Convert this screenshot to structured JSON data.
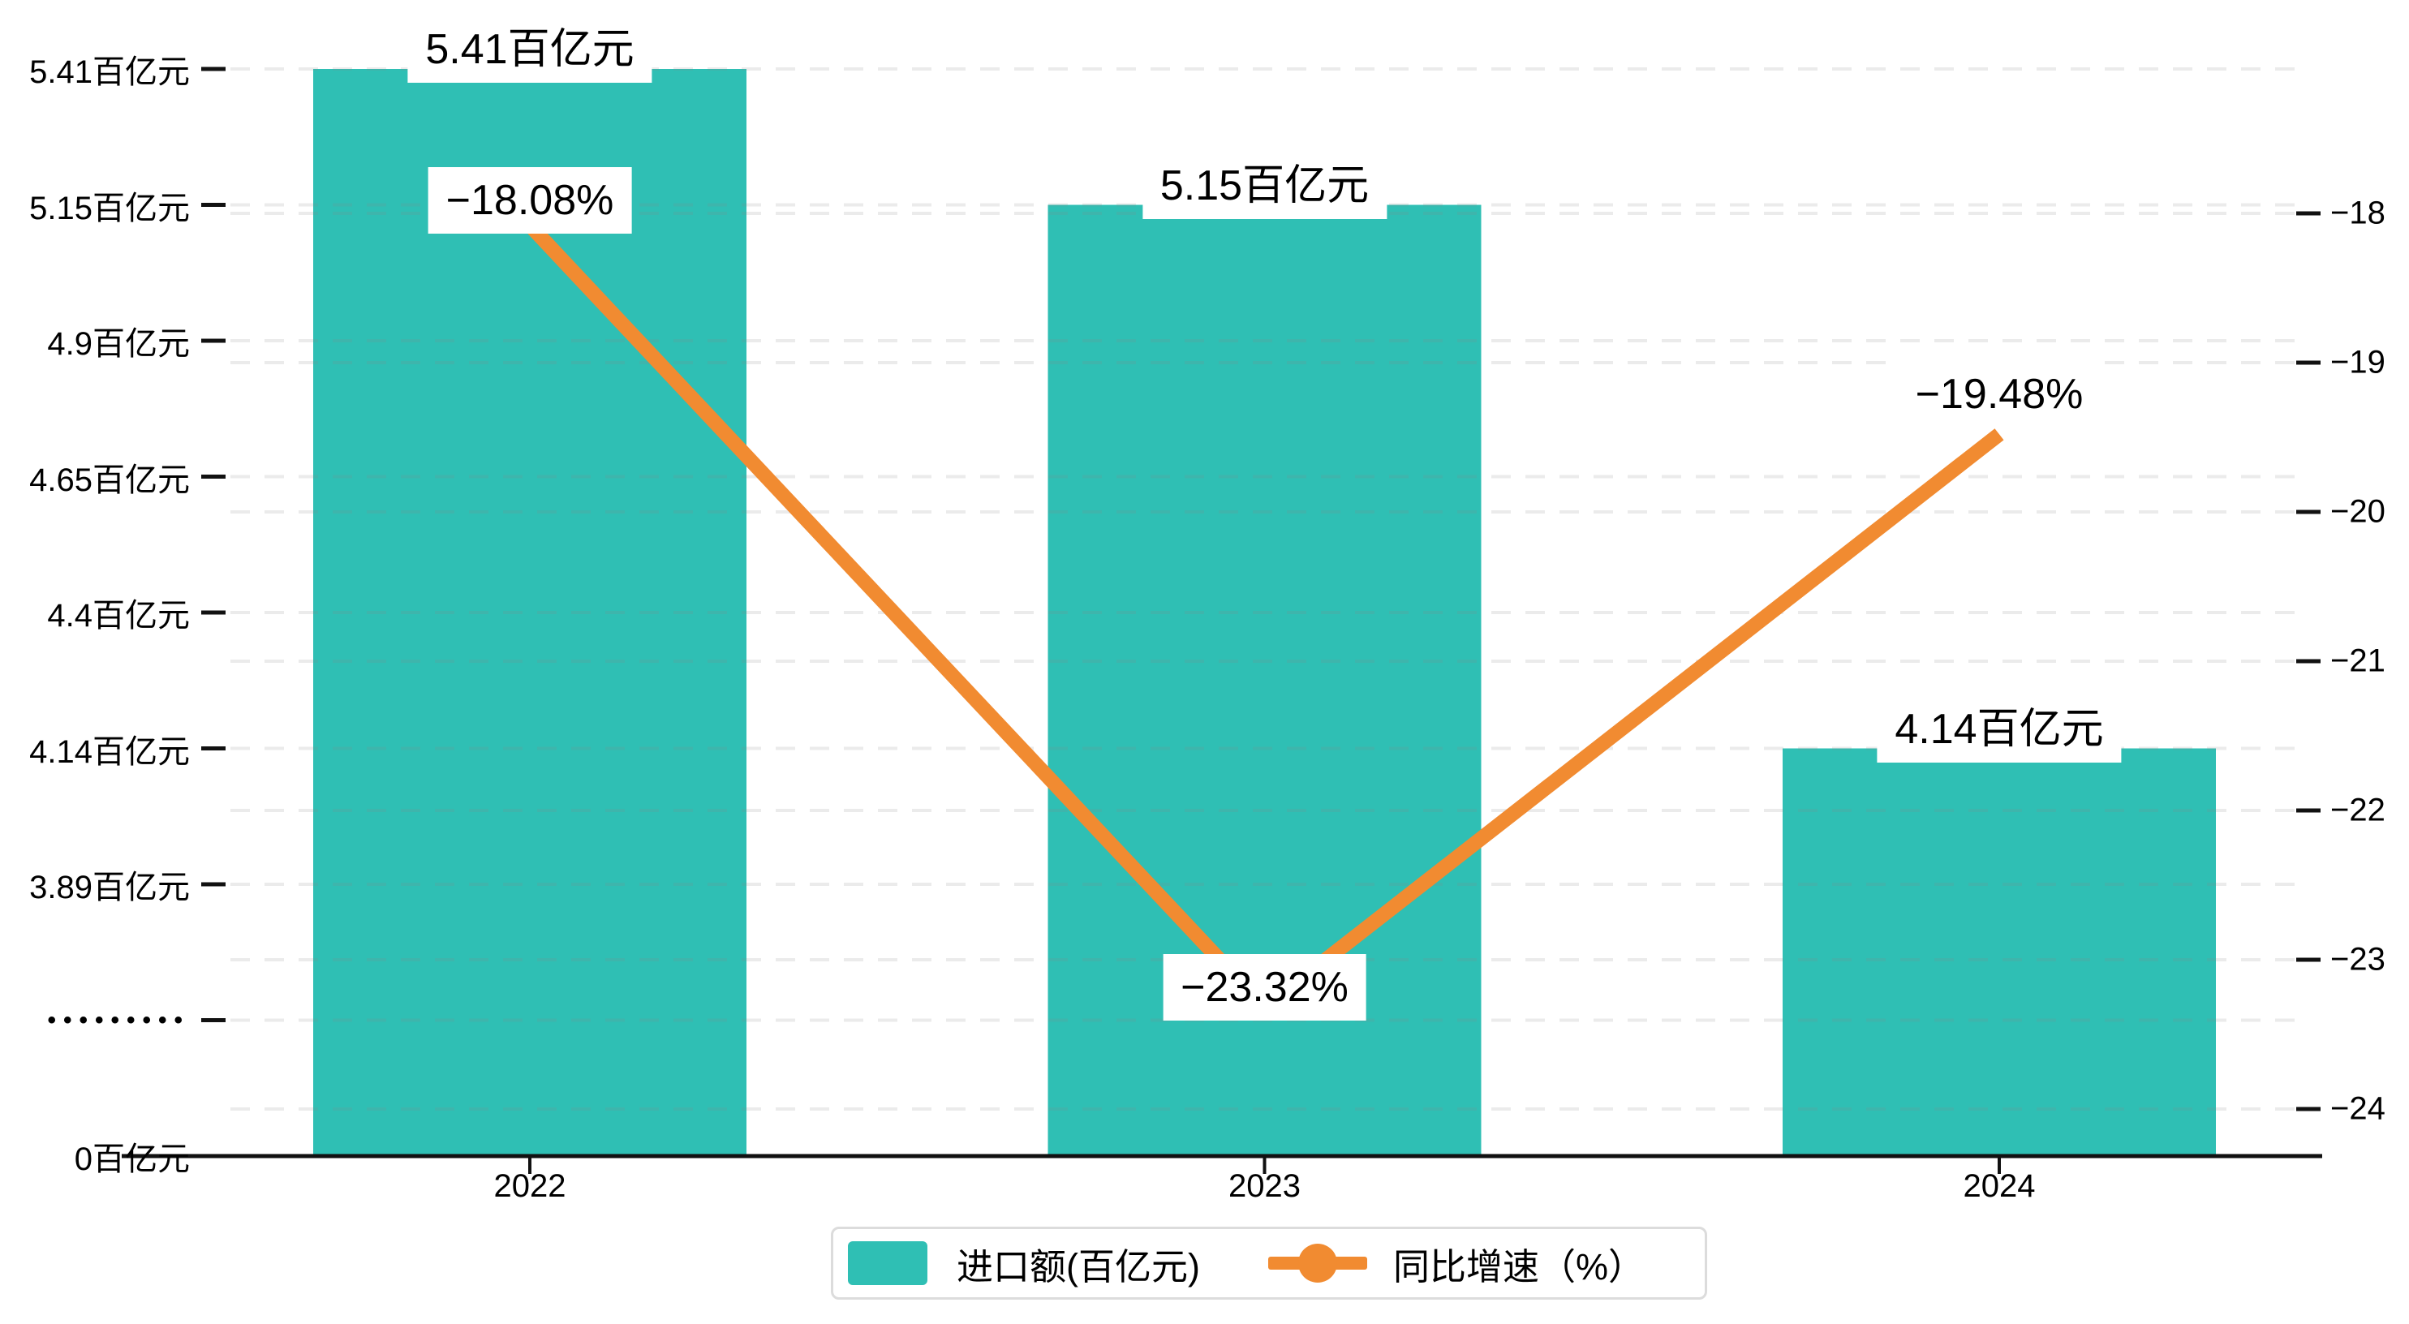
{
  "chart_data": {
    "type": "combo-bar-line",
    "categories": [
      "2022",
      "2023",
      "2024"
    ],
    "series": [
      {
        "name": "进口额(百亿元)",
        "type": "bar",
        "values": [
          5.41,
          5.15,
          4.14
        ],
        "labels": [
          "5.41百亿元",
          "5.15百亿元",
          "4.14百亿元"
        ],
        "color": "#2FBFB4"
      },
      {
        "name": "同比增速（%）",
        "type": "line",
        "values": [
          -18.08,
          -23.32,
          -19.48
        ],
        "labels": [
          "−18.08%",
          "−23.32%",
          "−19.48%"
        ],
        "color": "#F18B31"
      }
    ],
    "left_axis": {
      "tick_labels": [
        "5.41百亿元",
        "5.15百亿元",
        "4.9百亿元",
        "4.65百亿元",
        "4.4百亿元",
        "4.14百亿元",
        "3.89百亿元",
        "•••••••••",
        "0百亿元"
      ],
      "tick_values": [
        5.41,
        5.15,
        4.9,
        4.65,
        4.4,
        4.14,
        3.89,
        null,
        0
      ],
      "broken_axis_marker": "•••••••••"
    },
    "right_axis": {
      "tick_labels": [
        "−18",
        "−19",
        "−20",
        "−21",
        "−22",
        "−23",
        "−24"
      ],
      "tick_values": [
        -18,
        -19,
        -20,
        -21,
        -22,
        -23,
        -24
      ],
      "max": -18,
      "min": -24
    },
    "x_axis": {
      "tick_labels": [
        "2022",
        "2023",
        "2024"
      ]
    },
    "legend": [
      {
        "label": "进口额(百亿元)",
        "type": "bar",
        "color": "#2FBFB4"
      },
      {
        "label": "同比增速（%）",
        "type": "line",
        "color": "#F18B31"
      }
    ],
    "colors": {
      "bar": "#2FBFB4",
      "line": "#F18B31",
      "axis": "#111111",
      "grid": "#8a8a8a",
      "label_background": "#ffffff",
      "legend_border": "#dcdcdc",
      "text": "#000000"
    },
    "grid": "dashed",
    "legend_position": "bottom-center",
    "title": ""
  }
}
